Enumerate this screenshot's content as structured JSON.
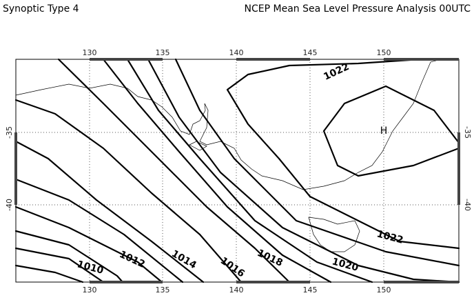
{
  "header": {
    "left": "Synoptic Type 4",
    "right": "NCEP Mean Sea Level Pressure Analysis 00UTC"
  },
  "axes": {
    "top_labels": [
      "130",
      "135",
      "140",
      "145",
      "150"
    ],
    "bottom_labels": [
      "130",
      "135",
      "140",
      "145",
      "150"
    ],
    "left_labels": [
      "-35",
      "-40"
    ],
    "right_labels": [
      "-35",
      "-40"
    ]
  },
  "contour_labels": [
    "1022",
    "1022",
    "1020",
    "1018",
    "1016",
    "1014",
    "1012",
    "1010"
  ],
  "high_label": "H"
}
